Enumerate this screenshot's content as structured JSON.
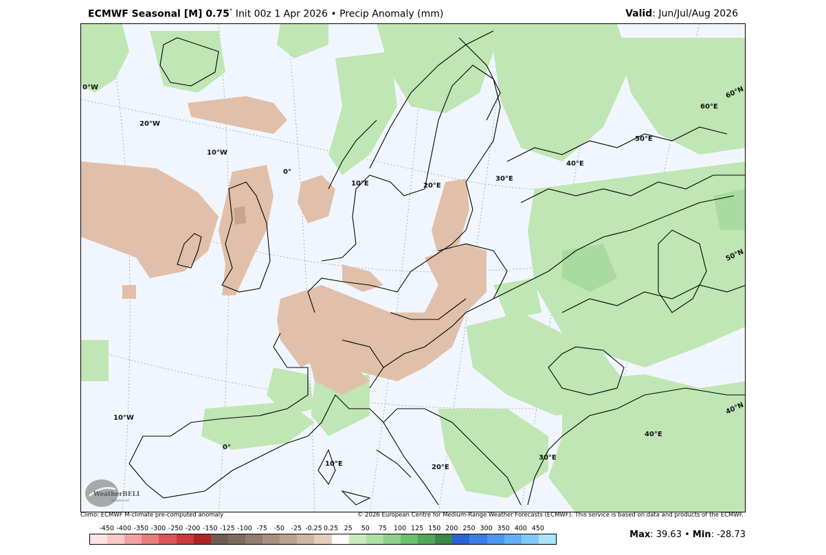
{
  "header": {
    "model": "ECMWF Seasonal [M] 0.75",
    "degree": "°",
    "init": " Init 00z 1 Apr 2026 • Precip Anomaly (mm)",
    "valid_label": "Valid",
    "valid_value": ": Jun/Jul/Aug 2026"
  },
  "map": {
    "labels": [
      "0°W",
      "20°W",
      "10°W",
      "0°",
      "10°E",
      "20°E",
      "30°E",
      "40°E",
      "50°E",
      "60°E",
      "60°N",
      "50°N",
      "40°N",
      "10°W",
      "0°",
      "10°E",
      "20°E",
      "30°E",
      "40°E"
    ],
    "colors": {
      "ocean_background": "#f1f6fe",
      "wet_anomaly": "#bfe6b4",
      "wet_anomaly_strong": "#a9dba0",
      "dry_anomaly": "#e0c0aa",
      "dry_anomaly_strong": "#c8a48c",
      "borders": "#000000",
      "graticule": "#9a9a9a"
    }
  },
  "footer": {
    "left": "Climo: ECMWF M-climate pre-computed anomaly",
    "right": "© 2026 European Centre for Medium-Range Weather Forecasts (ECMWF). This service is based on data and products of the ECMWF."
  },
  "colorbar": {
    "ticks": [
      "-450",
      "-400",
      "-350",
      "-300",
      "-250",
      "-200",
      "-150",
      "-125",
      "-100",
      "-75",
      "-50",
      "-25",
      "-0.25",
      "0.25",
      "25",
      "50",
      "75",
      "100",
      "125",
      "150",
      "200",
      "250",
      "300",
      "350",
      "400",
      "450"
    ],
    "tick_labels_as_printed": "-450 -400 -350 -300 -250 -200 -150 -125 -100 -75 -50 -25 -0.25 0.25 25 50 75 100 125 150 200 250 300 350 400 450",
    "colors": [
      "#fde4e4",
      "#fbc8c8",
      "#f3a2a2",
      "#ea7e7e",
      "#dd5555",
      "#cc3a3a",
      "#b02424",
      "#6e5c52",
      "#7f6b5e",
      "#917c6e",
      "#a88f7e",
      "#bba190",
      "#cfb5a3",
      "#e4cdbd",
      "#ffffff",
      "#c8eabe",
      "#ade0a3",
      "#8fd189",
      "#6bc06b",
      "#4fa85a",
      "#3b8649",
      "#2a63d8",
      "#3a7ee6",
      "#4b97ee",
      "#62b0f3",
      "#80c8f7",
      "#a8e4fa"
    ]
  },
  "stats": {
    "max_label": "Max",
    "max_value": ": 39.63",
    "sep": " • ",
    "min_label": "Min",
    "min_value": ": -28.73"
  },
  "logo": {
    "text": "WeatherBELL",
    "subtext": "Analytics LLC"
  }
}
